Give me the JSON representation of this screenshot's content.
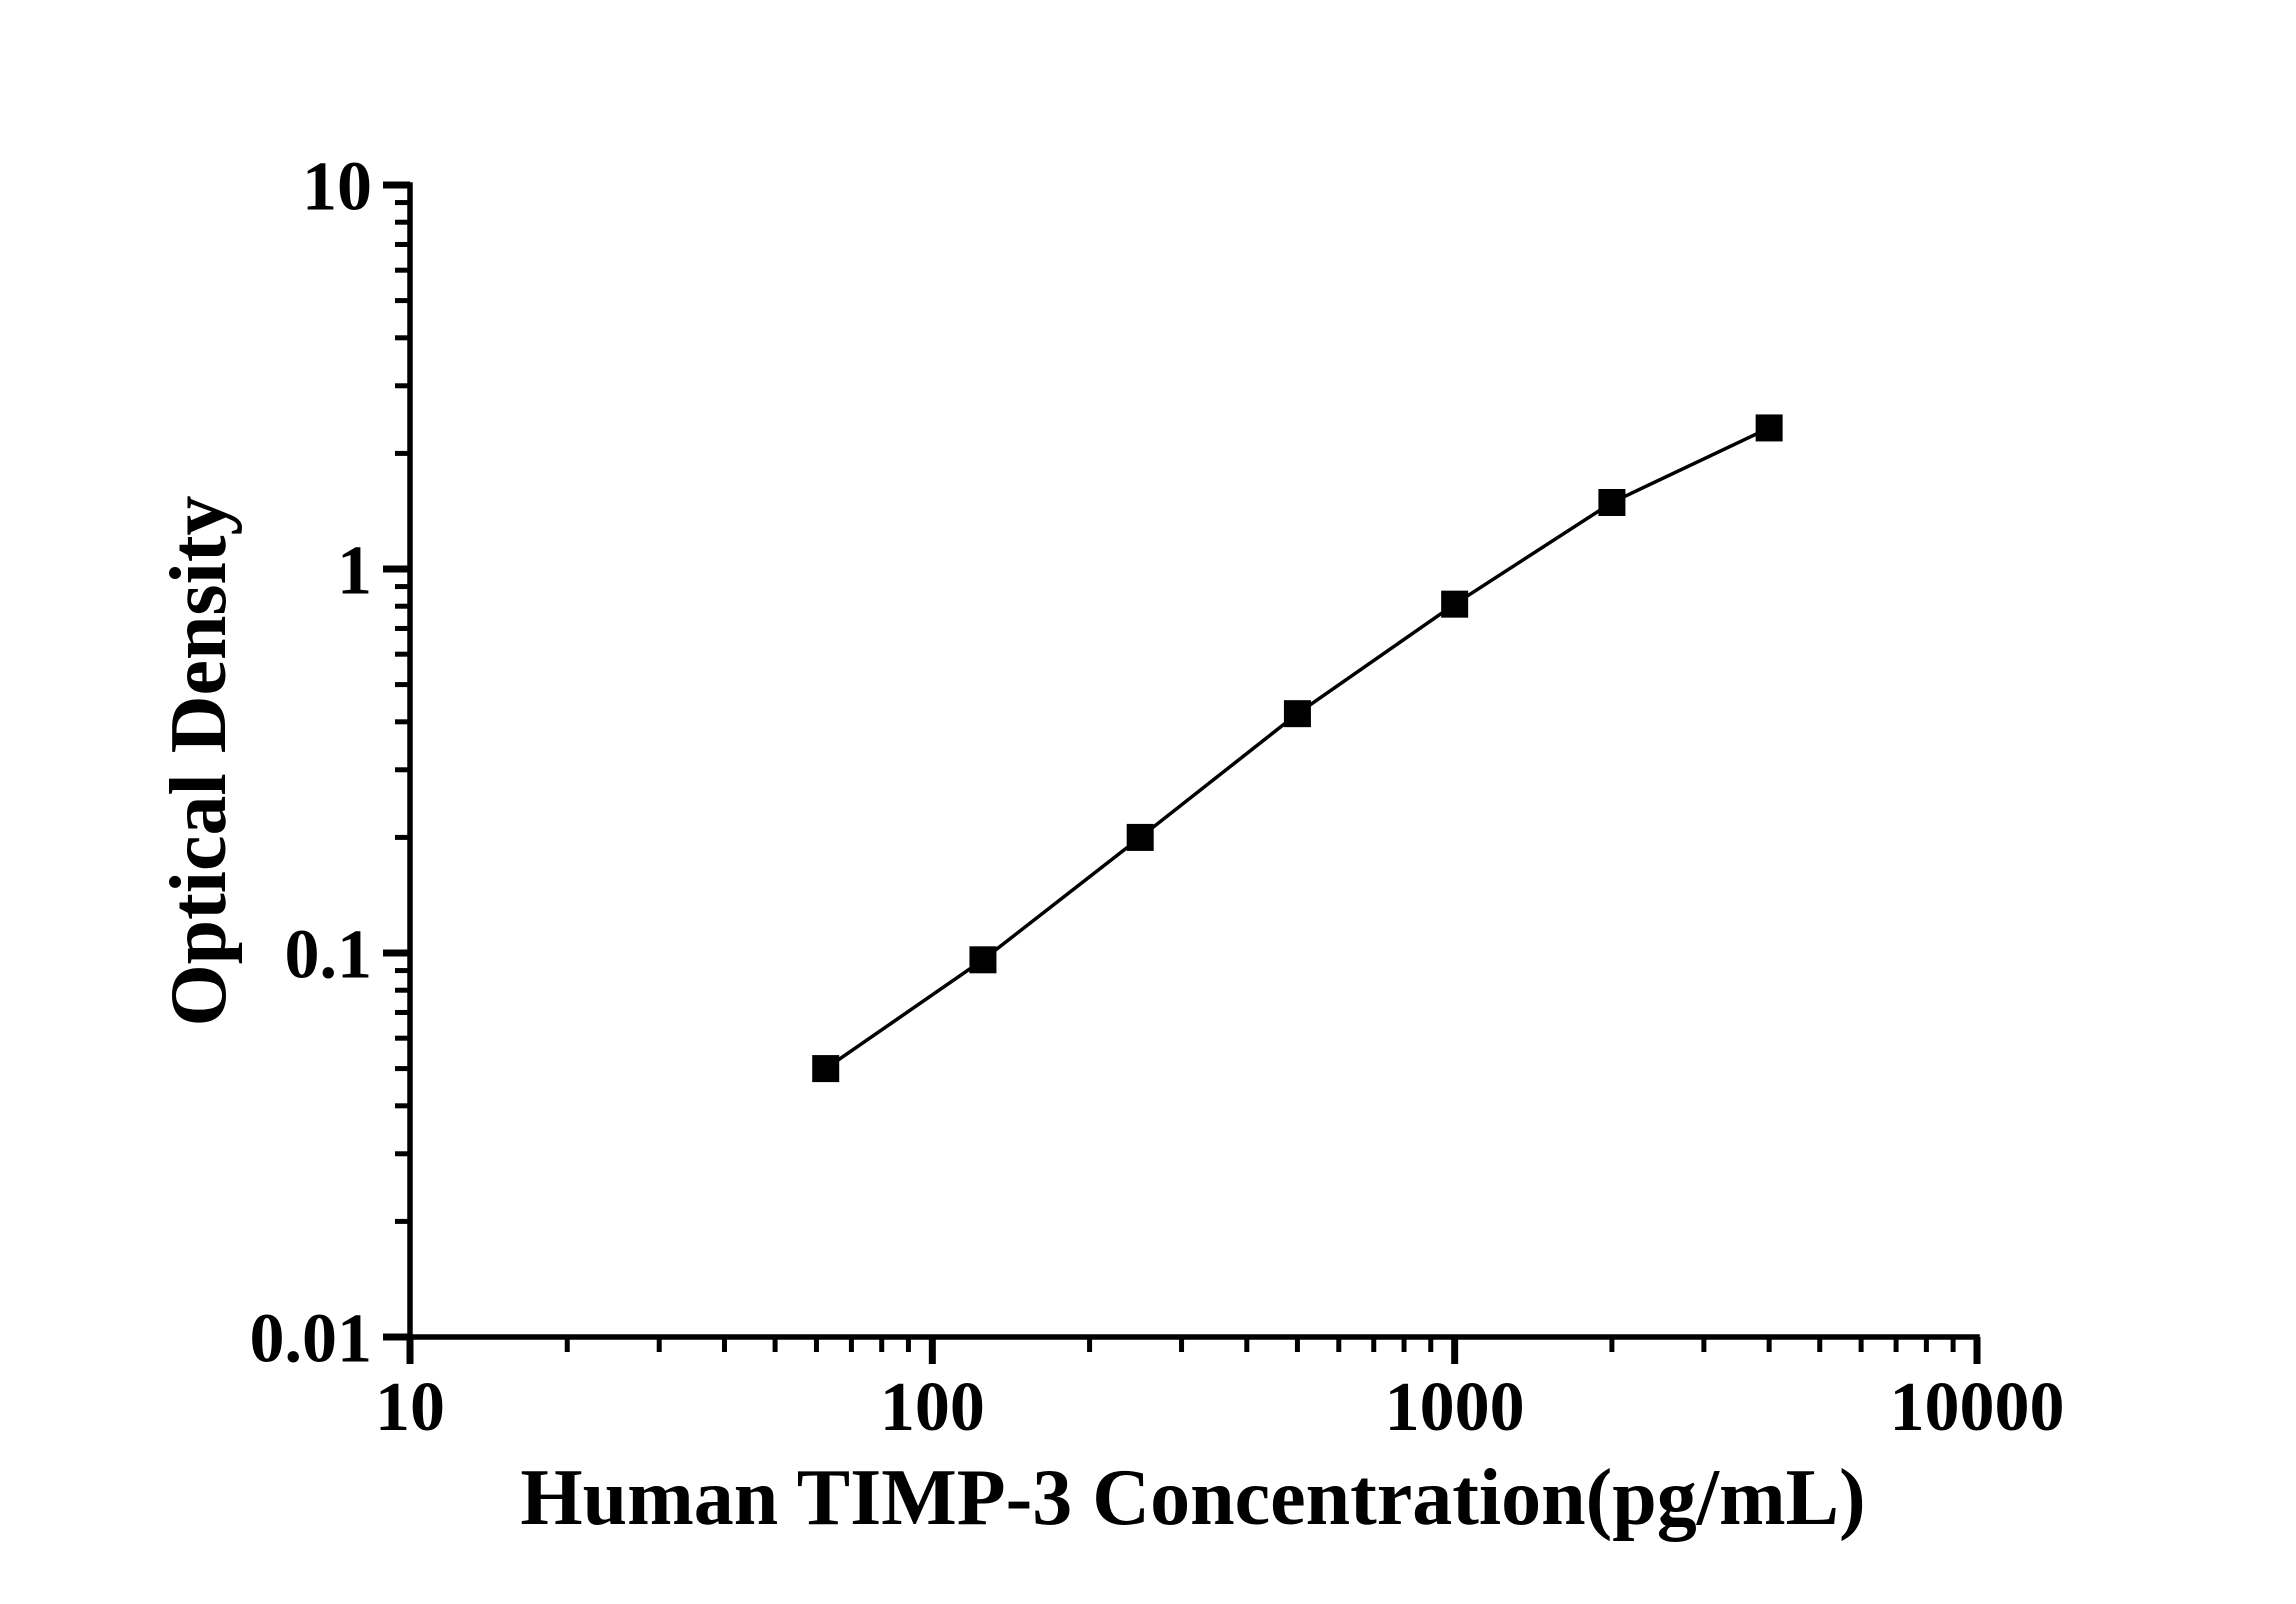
{
  "figure": {
    "background_color": "#ffffff",
    "foreground_color": "#000000"
  },
  "chart_data": {
    "type": "line",
    "title": "",
    "xlabel": "Human TIMP-3 Concentration(pg/mL)",
    "ylabel": "Optical Density",
    "x_scale": "log",
    "y_scale": "log",
    "xlim": [
      10,
      10000
    ],
    "ylim": [
      0.01,
      10
    ],
    "x_major_ticks": [
      10,
      100,
      1000,
      10000
    ],
    "x_tick_labels": [
      "10",
      "100",
      "1000",
      "10000"
    ],
    "y_major_ticks": [
      0.01,
      0.1,
      1,
      10
    ],
    "y_tick_labels": [
      "0.01",
      "0.1",
      "1",
      "10"
    ],
    "minor_ticks": "log-2-through-9-each-decade",
    "grid": false,
    "legend": "none",
    "axis_color": "#000000",
    "series": [
      {
        "name": "standard-curve",
        "marker": "filled-square",
        "color": "#000000",
        "x": [
          62.5,
          125,
          250,
          500,
          1000,
          2000,
          4000
        ],
        "y": [
          0.05,
          0.096,
          0.2,
          0.42,
          0.81,
          1.49,
          2.33
        ]
      }
    ]
  }
}
